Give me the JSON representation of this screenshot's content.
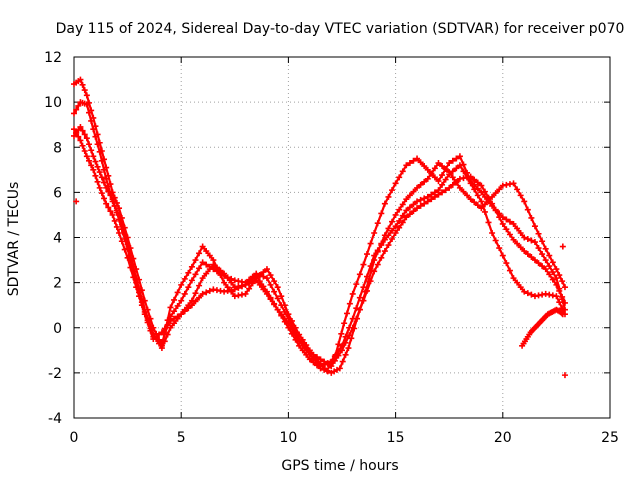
{
  "chart_data": {
    "type": "scatter",
    "title": "Day 115 of 2024, Sidereal Day-to-day VTEC variation (SDTVAR) for receiver p070",
    "xlabel": "GPS time / hours",
    "ylabel": "SDTVAR / TECUs",
    "xlim": [
      0,
      25
    ],
    "ylim": [
      -4,
      12
    ],
    "xticks": [
      0,
      5,
      10,
      15,
      20,
      25
    ],
    "yticks": [
      -4,
      -2,
      0,
      2,
      4,
      6,
      8,
      10,
      12
    ],
    "xtick_labels": [
      "0",
      "5",
      "10",
      "15",
      "20",
      "25"
    ],
    "ytick_labels": [
      "-4",
      "-2",
      "0",
      "2",
      "4",
      "6",
      "8",
      "10",
      "12"
    ],
    "grid": true,
    "marker": "plus",
    "color": "#ff0000",
    "series": [
      {
        "name": "trace-1",
        "x": [
          0,
          0.3,
          0.6,
          0.9,
          1.2,
          1.5,
          1.8,
          2.1,
          2.5,
          2.9,
          3.3,
          3.7,
          4.1,
          4.5,
          5,
          5.5,
          6,
          6.5,
          7,
          7.5,
          8,
          8.5,
          9,
          9.5,
          10,
          10.5,
          11,
          11.5,
          11.8,
          12.2,
          12.6,
          13,
          13.5,
          14,
          14.5,
          15,
          15.5,
          16,
          16.5,
          17,
          17.5,
          18,
          18.5,
          19,
          19.5,
          20,
          20.5,
          21,
          21.5,
          22,
          22.5,
          22.9
        ],
        "y": [
          10.8,
          11.0,
          10.3,
          9.3,
          8.2,
          7.1,
          6.0,
          5.3,
          4.0,
          2.6,
          1.2,
          0.0,
          -0.8,
          0.9,
          1.9,
          2.7,
          3.6,
          3.0,
          2.0,
          1.4,
          1.5,
          2.2,
          2.6,
          1.8,
          0.6,
          -0.3,
          -1.0,
          -1.6,
          -1.9,
          -1.2,
          0.2,
          1.5,
          2.8,
          4.2,
          5.5,
          6.4,
          7.2,
          7.5,
          7.0,
          6.5,
          7.3,
          7.6,
          6.5,
          6.0,
          5.4,
          4.9,
          4.6,
          4.0,
          3.8,
          3.0,
          2.2,
          0.8
        ]
      },
      {
        "name": "trace-2",
        "x": [
          0,
          0.3,
          0.6,
          0.9,
          1.2,
          1.5,
          1.8,
          2.1,
          2.5,
          2.9,
          3.3,
          3.7,
          4.1,
          4.5,
          5,
          5.5,
          6,
          6.5,
          7,
          7.5,
          8,
          8.5,
          9,
          9.5,
          10,
          10.5,
          11,
          11.5,
          12,
          12.4,
          12.8,
          13.2,
          13.6,
          14,
          14.5,
          15,
          15.5,
          16,
          16.5,
          17,
          17.5,
          18,
          18.5,
          19,
          19.5,
          20,
          20.5,
          21,
          21.5,
          22,
          22.5,
          22.9
        ],
        "y": [
          9.5,
          10.0,
          9.9,
          8.8,
          7.8,
          6.6,
          5.6,
          5.0,
          3.7,
          2.2,
          0.8,
          -0.3,
          -0.9,
          0.0,
          0.6,
          1.2,
          2.2,
          2.8,
          2.4,
          1.8,
          1.9,
          2.3,
          1.6,
          0.8,
          0.0,
          -0.8,
          -1.4,
          -1.8,
          -2.0,
          -1.8,
          -0.9,
          0.4,
          1.6,
          3.0,
          4.1,
          5.0,
          5.7,
          6.2,
          6.6,
          7.3,
          6.9,
          6.2,
          5.7,
          5.3,
          5.8,
          6.3,
          6.4,
          5.6,
          4.5,
          3.5,
          2.6,
          1.8
        ]
      },
      {
        "name": "trace-3",
        "x": [
          0,
          0.3,
          0.6,
          0.9,
          1.2,
          1.5,
          1.8,
          2.1,
          2.5,
          2.9,
          3.3,
          3.7,
          4.1,
          4.5,
          5,
          5.5,
          6,
          6.5,
          7,
          7.5,
          8,
          8.5,
          9,
          9.5,
          10,
          10.5,
          11,
          11.5,
          12,
          12.5,
          13,
          13.5,
          14,
          14.5,
          15,
          15.5,
          16,
          16.5,
          17,
          17.5,
          18,
          18.5,
          19,
          19.5,
          20,
          20.5,
          21,
          21.5,
          22,
          22.5,
          22.9
        ],
        "y": [
          8.8,
          8.3,
          7.6,
          7.0,
          6.2,
          5.5,
          5.0,
          4.2,
          3.1,
          1.8,
          0.6,
          -0.5,
          -0.2,
          0.3,
          0.6,
          1.0,
          1.5,
          1.7,
          1.6,
          1.7,
          1.9,
          2.1,
          1.5,
          0.8,
          0.2,
          -0.6,
          -1.2,
          -1.7,
          -1.5,
          -0.8,
          0.4,
          1.8,
          3.2,
          3.9,
          4.5,
          5.2,
          5.6,
          5.8,
          6.1,
          6.8,
          7.2,
          6.4,
          5.6,
          4.2,
          3.2,
          2.2,
          1.6,
          1.4,
          1.5,
          1.4,
          0.6
        ]
      },
      {
        "name": "trace-4",
        "x": [
          0,
          0.3,
          0.6,
          0.9,
          1.2,
          1.5,
          1.8,
          2.1,
          2.5,
          2.9,
          3.3,
          3.7,
          4.1,
          4.5,
          5,
          5.5,
          6,
          6.5,
          7,
          7.5,
          8,
          8.5,
          9,
          9.5,
          10,
          10.5,
          11,
          11.5,
          12,
          12.5,
          13,
          13.5,
          14,
          14.5,
          15,
          15.5,
          16,
          16.5,
          17,
          17.5,
          18,
          18.5,
          19,
          19.5,
          20,
          20.5,
          21,
          21.5,
          22,
          22.5,
          22.9
        ],
        "y": [
          8.5,
          8.9,
          8.4,
          7.6,
          6.9,
          6.2,
          5.7,
          4.8,
          3.5,
          2.0,
          0.7,
          -0.4,
          -0.7,
          0.5,
          1.2,
          2.1,
          2.9,
          2.6,
          2.3,
          2.1,
          2.0,
          2.4,
          2.2,
          1.3,
          0.4,
          -0.5,
          -1.1,
          -1.4,
          -1.7,
          -1.0,
          0.0,
          1.2,
          2.5,
          3.4,
          4.2,
          4.9,
          5.3,
          5.6,
          5.9,
          6.2,
          6.6,
          6.7,
          6.3,
          5.5,
          4.6,
          3.9,
          3.4,
          3.0,
          2.6,
          1.9,
          1.1
        ]
      },
      {
        "name": "trace-5",
        "x": [
          20.9,
          21.1,
          21.3,
          21.5,
          21.7,
          21.9,
          22.1,
          22.3,
          22.5,
          22.7,
          22.8
        ],
        "y": [
          -0.8,
          -0.5,
          -0.2,
          0.0,
          0.2,
          0.4,
          0.6,
          0.7,
          0.8,
          0.7,
          0.6
        ]
      }
    ],
    "isolated_points": {
      "x": [
        0.1,
        22.8,
        22.9
      ],
      "y": [
        5.6,
        3.6,
        -2.1
      ]
    }
  }
}
